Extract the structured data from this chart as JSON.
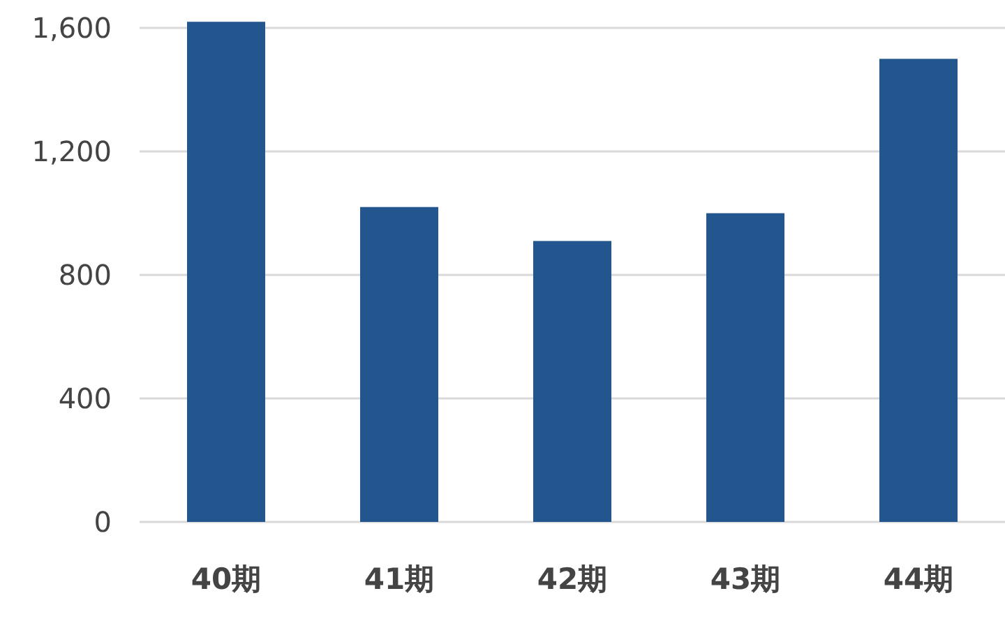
{
  "chart_data": {
    "type": "bar",
    "categories": [
      "40期",
      "41期",
      "42期",
      "43期",
      "44期"
    ],
    "values": [
      1620,
      1020,
      910,
      1000,
      1500
    ],
    "color": "#23558f",
    "ylim": [
      0,
      1630
    ],
    "yticks": [
      {
        "value": 0,
        "label": "0"
      },
      {
        "value": 400,
        "label": "400"
      },
      {
        "value": 800,
        "label": "800"
      },
      {
        "value": 1200,
        "label": "1,200"
      },
      {
        "value": 1600,
        "label": "1,600"
      }
    ],
    "grid": "y"
  }
}
